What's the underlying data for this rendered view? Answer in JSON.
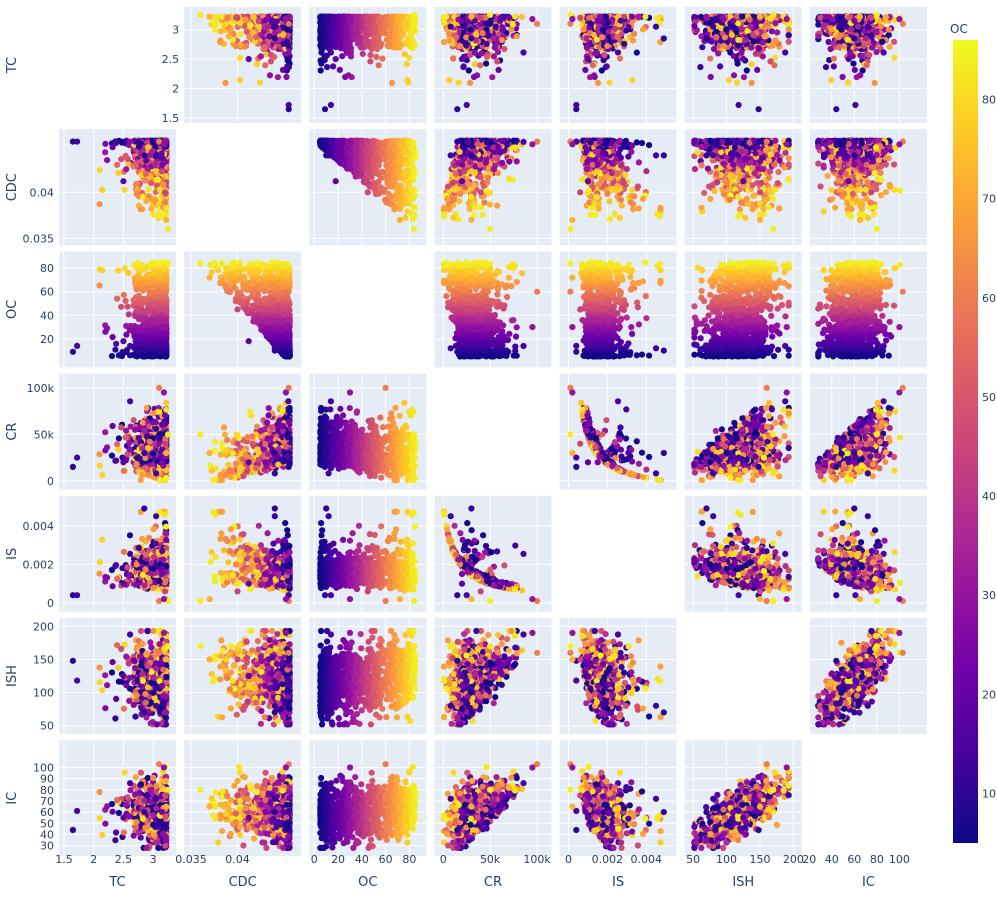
{
  "chart_data": {
    "type": "scatter_matrix",
    "dimensions": [
      "TC",
      "CDC",
      "OC",
      "CR",
      "IS",
      "ISH",
      "IC"
    ],
    "diagonal_visible": false,
    "color_variable": "OC",
    "colorscale": [
      "#0d0887",
      "#46039f",
      "#7201a8",
      "#9c179e",
      "#bd3786",
      "#d8576b",
      "#ed7953",
      "#fb9f3a",
      "#fdca26",
      "#f0f921"
    ],
    "plot_bgcolor": "#e5ecf6",
    "grid": true,
    "axes": {
      "TC": {
        "range": [
          1.5,
          3.3
        ],
        "ticks": [
          1.5,
          2,
          2.5,
          3
        ],
        "tick_labels": [
          "1.5",
          "2",
          "2.5",
          "3"
        ],
        "x_ticks": [
          1.5,
          2,
          2.5,
          3
        ],
        "x_tick_labels": [
          "1.5",
          "2",
          "2.5",
          "3"
        ]
      },
      "CDC": {
        "range": [
          0.0348,
          0.0463
        ],
        "ticks": [
          0.035,
          0.04
        ],
        "tick_labels": [
          "0.035",
          "0.04"
        ],
        "x_ticks": [
          0.035,
          0.04
        ],
        "x_tick_labels": [
          "0.035",
          "0.04"
        ]
      },
      "OC": {
        "range": [
          0,
          90
        ],
        "ticks": [
          20,
          40,
          60,
          80
        ],
        "tick_labels": [
          "20",
          "40",
          "60",
          "80"
        ],
        "x_ticks": [
          0,
          20,
          40,
          60,
          80
        ],
        "x_tick_labels": [
          "0",
          "20",
          "40",
          "60",
          "80"
        ]
      },
      "CR": {
        "range": [
          -4000,
          110000
        ],
        "ticks": [
          0,
          50000,
          100000
        ],
        "tick_labels": [
          "0",
          "50k",
          "100k"
        ],
        "x_ticks": [
          0,
          50000,
          100000
        ],
        "x_tick_labels": [
          "0",
          "50k",
          "100k"
        ]
      },
      "IS": {
        "range": [
          -0.0002,
          0.0053
        ],
        "ticks": [
          0,
          0.002,
          0.004
        ],
        "tick_labels": [
          "0",
          "0.002",
          "0.004"
        ],
        "x_ticks": [
          0,
          0.002,
          0.004
        ],
        "x_tick_labels": [
          "0",
          "0.002",
          "0.004"
        ]
      },
      "ISH": {
        "range": [
          45,
          205
        ],
        "ticks": [
          50,
          100,
          150,
          200
        ],
        "tick_labels": [
          "50",
          "100",
          "150",
          "200"
        ],
        "x_ticks": [
          50,
          100,
          150,
          200
        ],
        "x_tick_labels": [
          "50",
          "100",
          "150",
          "200"
        ]
      },
      "IC": {
        "range": [
          25,
          120
        ],
        "ticks": [
          30,
          40,
          50,
          60,
          70,
          80,
          90,
          100
        ],
        "tick_labels": [
          "30",
          "40",
          "50",
          "60",
          "70",
          "80",
          "90",
          "100"
        ],
        "x_ticks": [
          20,
          40,
          60,
          80,
          100
        ],
        "x_tick_labels": [
          "20",
          "40",
          "60",
          "80",
          "100"
        ]
      }
    },
    "colorbar": {
      "title": "OC",
      "range": [
        5,
        86
      ],
      "ticks": [
        10,
        20,
        30,
        40,
        50,
        60,
        70,
        80
      ],
      "tick_labels": [
        "10",
        "20",
        "30",
        "40",
        "50",
        "60",
        "70",
        "80"
      ]
    },
    "sample_points": [
      {
        "TC": 1.65,
        "CDC": 0.0455,
        "OC": 9,
        "CR": 15000,
        "IS": 0.0004,
        "ISH": 148,
        "IC": 44
      },
      {
        "TC": 1.72,
        "CDC": 0.0455,
        "OC": 14,
        "CR": 25000,
        "IS": 0.0004,
        "ISH": 118,
        "IC": 61
      },
      {
        "TC": 2.5,
        "CDC": 0.0412,
        "OC": 18,
        "CR": 20000,
        "IS": 0.001,
        "ISH": 125,
        "IC": 55
      },
      {
        "TC": 2.85,
        "CDC": 0.044,
        "OC": 10,
        "CR": 30000,
        "IS": 0.0049,
        "ISH": 70,
        "IC": 60
      },
      {
        "TC": 3.05,
        "CDC": 0.044,
        "OC": 12,
        "CR": 8000,
        "IS": 0.0045,
        "ISH": 80,
        "IC": 72
      },
      {
        "TC": 3.15,
        "CDC": 0.043,
        "OC": 25,
        "CR": 20000,
        "IS": 0.0015,
        "ISH": 110,
        "IC": 60
      },
      {
        "TC": 3.2,
        "CDC": 0.04,
        "OC": 45,
        "CR": 40000,
        "IS": 0.0006,
        "ISH": 150,
        "IC": 75
      },
      {
        "TC": 3.22,
        "CDC": 0.037,
        "OC": 72,
        "CR": 30000,
        "IS": 0.0002,
        "ISH": 150,
        "IC": 65
      },
      {
        "TC": 3.25,
        "CDC": 0.036,
        "OC": 84,
        "CR": 50000,
        "IS": 0.0001,
        "ISH": 170,
        "IC": 80
      },
      {
        "TC": 3.1,
        "CDC": 0.0455,
        "OC": 60,
        "CR": 100000,
        "IS": 0.0001,
        "ISH": 160,
        "IC": 103
      },
      {
        "TC": 3.18,
        "CDC": 0.0452,
        "OC": 30,
        "CR": 95000,
        "IS": 0.0002,
        "ISH": 190,
        "IC": 100
      }
    ]
  }
}
